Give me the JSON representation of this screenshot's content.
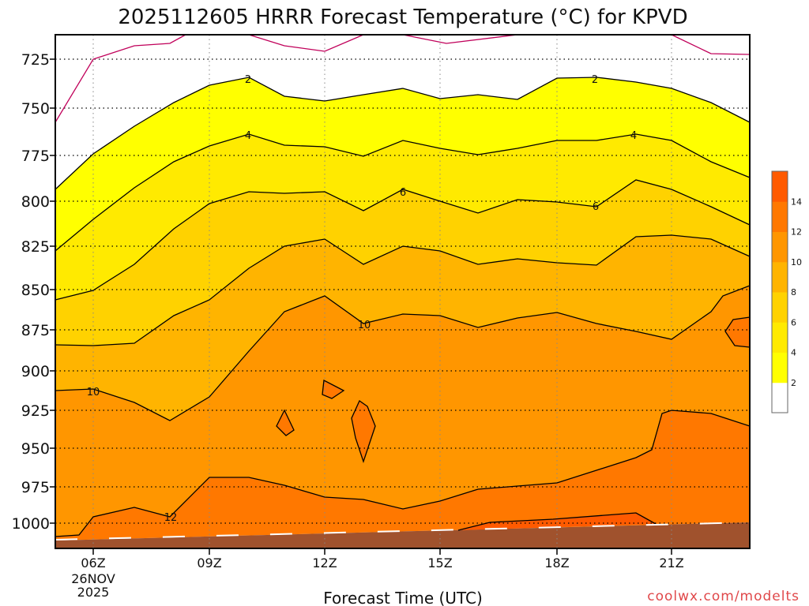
{
  "chart_data": {
    "type": "heatmap",
    "title": "2025112605 HRRR Forecast Temperature (°C) for KPVD",
    "xlabel": "Forecast Time (UTC)",
    "ylabel": "",
    "x_tick_labels": [
      "06Z",
      "09Z",
      "12Z",
      "15Z",
      "18Z",
      "21Z"
    ],
    "x_date_label": [
      "26NOV",
      "2025"
    ],
    "y_tick_labels": [
      "725",
      "750",
      "775",
      "800",
      "825",
      "850",
      "875",
      "900",
      "925",
      "950",
      "975",
      "1000"
    ],
    "y_axis_values_hPa": [
      725,
      750,
      775,
      800,
      825,
      850,
      875,
      900,
      925,
      950,
      975,
      1000
    ],
    "colorbar": {
      "levels": [
        2,
        4,
        6,
        8,
        10,
        12,
        14
      ],
      "tick_labels": [
        "2",
        "4",
        "6",
        "8",
        "10",
        "12",
        "14"
      ],
      "colors": [
        "#ffffff",
        "#ffff00",
        "#ffea00",
        "#ffd200",
        "#ffb400",
        "#ff9600",
        "#ff7800",
        "#ff5a00"
      ]
    },
    "contour_labels": [
      "2",
      "2",
      "4",
      "4",
      "6",
      "6",
      "10",
      "10",
      "12"
    ],
    "terrain_color": "#a0522d",
    "freezing_line_color": "#c0005a"
  },
  "footer": {
    "credit": "coolwx.com/modelts"
  }
}
